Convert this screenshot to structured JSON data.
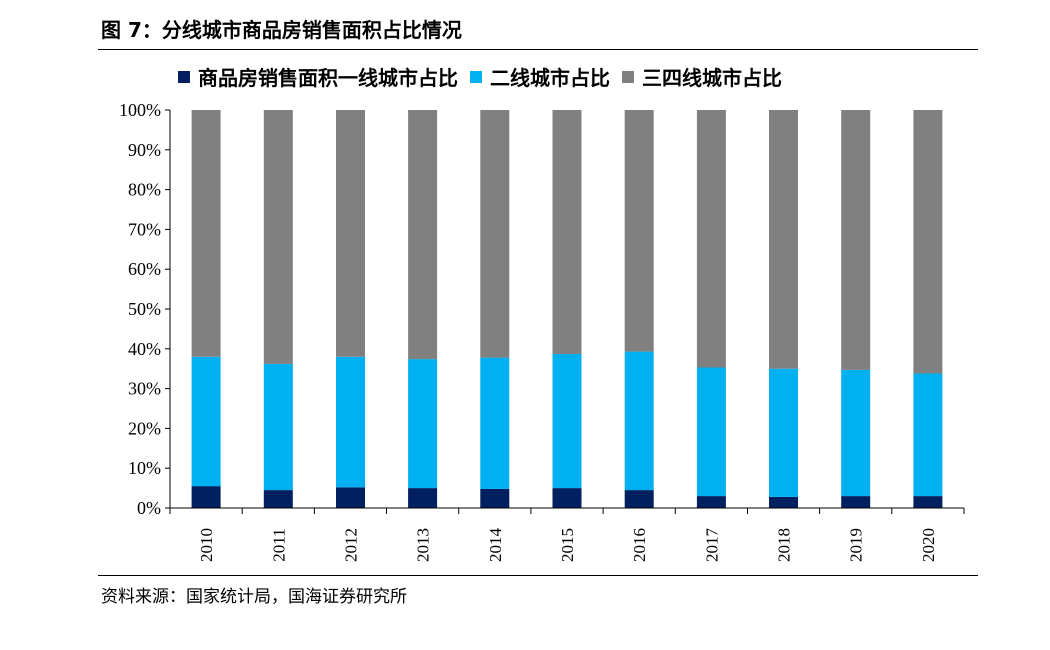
{
  "figure": {
    "title": "图 7：分线城市商品房销售面积占比情况",
    "source": "资料来源：国家统计局，国海证券研究所"
  },
  "chart_data": {
    "type": "bar",
    "stacked": true,
    "categories": [
      "2010",
      "2011",
      "2012",
      "2013",
      "2014",
      "2015",
      "2016",
      "2017",
      "2018",
      "2019",
      "2020"
    ],
    "series": [
      {
        "name": "商品房销售面积一线城市占比",
        "color": "#002060",
        "values": [
          5.5,
          4.5,
          5.2,
          5.0,
          4.8,
          5.0,
          4.5,
          3.0,
          2.8,
          3.0,
          3.0
        ]
      },
      {
        "name": "二线城市占比",
        "color": "#00B0F0",
        "values": [
          32.5,
          31.7,
          32.8,
          32.4,
          33.0,
          33.7,
          34.8,
          32.3,
          32.2,
          31.7,
          30.8
        ]
      },
      {
        "name": "三四线城市占比",
        "color": "#808080",
        "values": [
          62.0,
          63.8,
          62.0,
          62.6,
          62.2,
          61.3,
          60.7,
          64.7,
          65.0,
          65.3,
          66.2
        ]
      }
    ],
    "y_ticks": [
      "0%",
      "10%",
      "20%",
      "30%",
      "40%",
      "50%",
      "60%",
      "70%",
      "80%",
      "90%",
      "100%"
    ],
    "ylim": [
      0,
      100
    ],
    "grid": false,
    "legend_position": "top"
  }
}
